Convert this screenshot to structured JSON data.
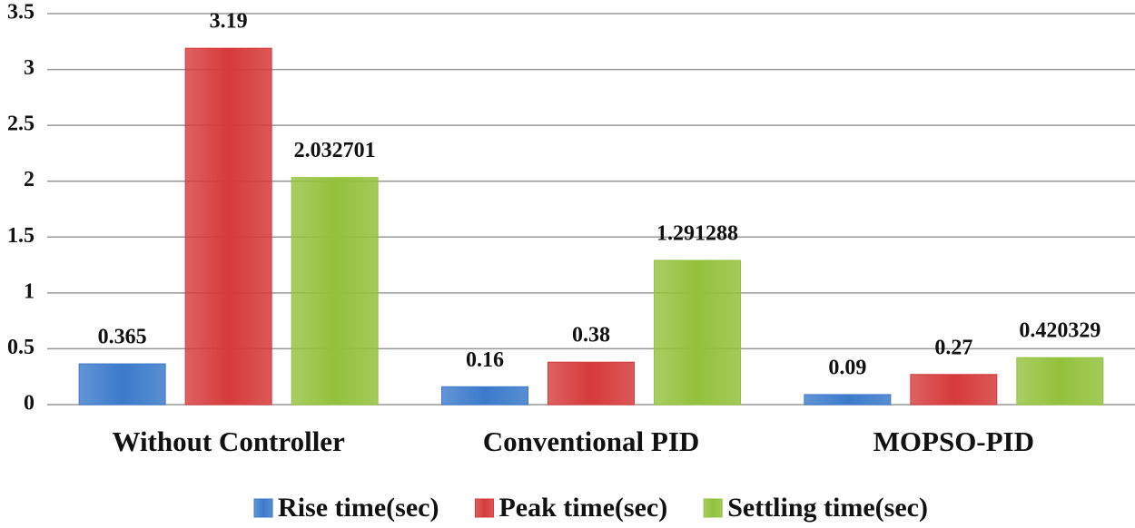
{
  "chart_data": {
    "type": "bar",
    "categories": [
      "Without Controller",
      "Conventional PID",
      "MOPSO-PID"
    ],
    "series": [
      {
        "name": "Rise time(sec)",
        "color": "#3b7acb",
        "values": [
          0.365,
          0.16,
          0.09
        ]
      },
      {
        "name": "Peak time(sec)",
        "color": "#d63a3a",
        "values": [
          3.19,
          0.38,
          0.27
        ]
      },
      {
        "name": "Settling time(sec)",
        "color": "#93c13c",
        "values": [
          2.032701,
          1.291288,
          0.420329
        ]
      }
    ],
    "ylim": [
      0,
      3.5
    ],
    "yticks": [
      0,
      0.5,
      1,
      1.5,
      2,
      2.5,
      3,
      3.5
    ],
    "grid": true,
    "legend": "bottom"
  }
}
